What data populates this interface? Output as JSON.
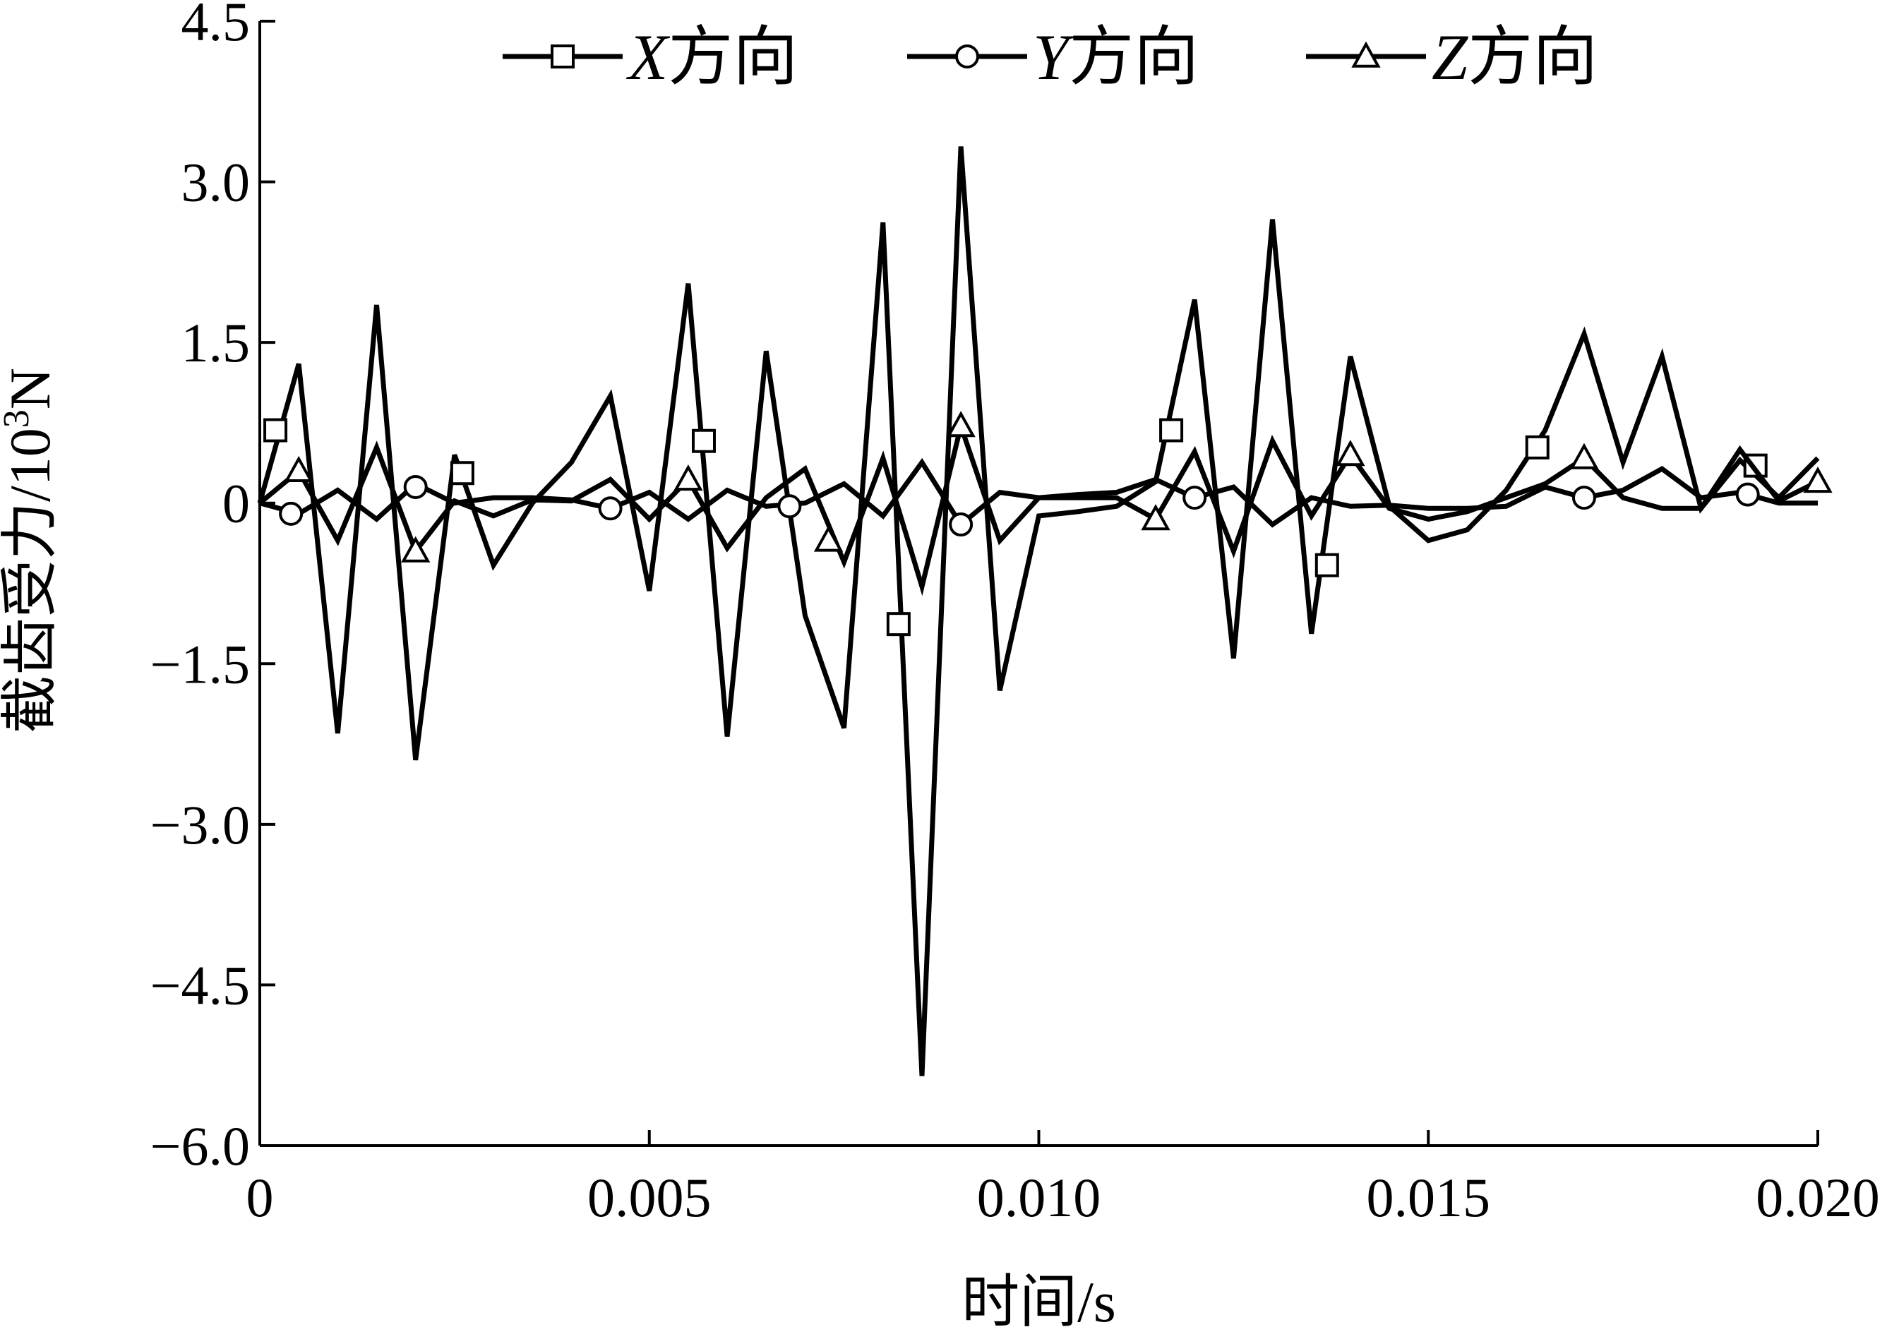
{
  "chart_data": {
    "type": "line",
    "xlabel": "时间/s",
    "ylabel": "截齿受力/10",
    "ylabel_sup": "3",
    "ylabel_unit": "N",
    "xlim": [
      0,
      0.02
    ],
    "ylim": [
      -6.0,
      4.5
    ],
    "x_ticks": [
      0,
      0.005,
      0.01,
      0.015,
      0.02
    ],
    "x_tick_labels": [
      "0",
      "0.005",
      "0.010",
      "0.015",
      "0.020"
    ],
    "y_ticks": [
      4.5,
      3.0,
      1.5,
      0,
      -1.5,
      -3.0,
      -4.5,
      -6.0
    ],
    "y_tick_labels": [
      "4.5",
      "3.0",
      "1.5",
      "0",
      "−1.5",
      "−3.0",
      "−4.5",
      "−6.0"
    ],
    "legend_position": "top",
    "grid": false,
    "series": [
      {
        "name": "X方向",
        "name_letter": "X",
        "name_suffix": "方向",
        "marker": "square",
        "x": [
          0,
          0.0005,
          0.001,
          0.0015,
          0.002,
          0.0025,
          0.003,
          0.0035,
          0.004,
          0.0045,
          0.005,
          0.0055,
          0.006,
          0.0065,
          0.007,
          0.0075,
          0.008,
          0.0085,
          0.009,
          0.0095,
          0.01,
          0.0105,
          0.011,
          0.0115,
          0.012,
          0.0125,
          0.013,
          0.0135,
          0.014,
          0.0145,
          0.015,
          0.0155,
          0.016,
          0.0165,
          0.017,
          0.0175,
          0.018,
          0.0185,
          0.019,
          0.0195,
          0.02
        ],
        "y": [
          0.0,
          1.3,
          -2.15,
          1.85,
          -2.4,
          0.45,
          -0.58,
          0.0,
          0.38,
          1.0,
          -0.82,
          2.05,
          -2.18,
          1.42,
          -1.05,
          -2.1,
          2.62,
          -5.35,
          3.33,
          -1.75,
          -0.12,
          -0.08,
          -0.03,
          0.2,
          1.9,
          -1.45,
          2.65,
          -1.22,
          1.37,
          -0.03,
          -0.35,
          -0.25,
          0.12,
          0.68,
          1.58,
          0.38,
          1.37,
          -0.05,
          0.4,
          0.05,
          0.42
        ],
        "marker_x": [
          0.0002,
          0.0026,
          0.0057,
          0.0082,
          0.0117,
          0.0137,
          0.0164,
          0.0192
        ],
        "marker_y": [
          0.68,
          0.28,
          0.58,
          -1.13,
          0.68,
          -0.58,
          0.52,
          0.35
        ]
      },
      {
        "name": "Y方向",
        "name_letter": "Y",
        "name_suffix": "方向",
        "marker": "circle",
        "x": [
          0,
          0.0005,
          0.001,
          0.0015,
          0.002,
          0.0025,
          0.003,
          0.0035,
          0.004,
          0.0045,
          0.005,
          0.0055,
          0.006,
          0.0065,
          0.007,
          0.0075,
          0.008,
          0.0085,
          0.009,
          0.0095,
          0.01,
          0.0105,
          0.011,
          0.0115,
          0.012,
          0.0125,
          0.013,
          0.0135,
          0.014,
          0.0145,
          0.015,
          0.0155,
          0.016,
          0.0165,
          0.017,
          0.0175,
          0.018,
          0.0185,
          0.019,
          0.0195,
          0.02
        ],
        "y": [
          0.0,
          -0.1,
          0.12,
          -0.15,
          0.18,
          0.0,
          0.05,
          0.05,
          0.03,
          -0.05,
          0.1,
          -0.15,
          0.12,
          -0.03,
          0.0,
          0.18,
          -0.12,
          0.38,
          -0.2,
          0.1,
          0.05,
          0.08,
          0.1,
          0.22,
          0.05,
          0.15,
          -0.2,
          0.05,
          -0.03,
          -0.02,
          -0.05,
          -0.05,
          -0.03,
          0.15,
          0.05,
          0.12,
          0.32,
          0.05,
          0.1,
          0.0,
          0.0
        ],
        "marker_x": [
          0.0004,
          0.002,
          0.0045,
          0.0068,
          0.009,
          0.012,
          0.017,
          0.0191
        ],
        "marker_y": [
          -0.1,
          0.15,
          -0.05,
          -0.03,
          -0.2,
          0.05,
          0.05,
          0.08
        ]
      },
      {
        "name": "Z方向",
        "name_letter": "Z",
        "name_suffix": "方向",
        "marker": "triangle",
        "x": [
          0,
          0.0005,
          0.001,
          0.0015,
          0.002,
          0.0025,
          0.003,
          0.0035,
          0.004,
          0.0045,
          0.005,
          0.0055,
          0.006,
          0.0065,
          0.007,
          0.0075,
          0.008,
          0.0085,
          0.009,
          0.0095,
          0.01,
          0.0105,
          0.011,
          0.0115,
          0.012,
          0.0125,
          0.013,
          0.0135,
          0.014,
          0.0145,
          0.015,
          0.0155,
          0.016,
          0.0165,
          0.017,
          0.0175,
          0.018,
          0.0185,
          0.019,
          0.0195,
          0.02
        ],
        "y": [
          0.0,
          0.3,
          -0.35,
          0.52,
          -0.45,
          0.02,
          -0.12,
          0.03,
          0.02,
          0.22,
          -0.15,
          0.22,
          -0.42,
          0.05,
          0.32,
          -0.55,
          0.42,
          -0.78,
          0.72,
          -0.35,
          0.05,
          0.05,
          0.05,
          -0.15,
          0.48,
          -0.45,
          0.58,
          -0.12,
          0.45,
          -0.05,
          -0.15,
          -0.08,
          0.05,
          0.18,
          0.42,
          0.05,
          -0.05,
          -0.05,
          0.5,
          0.02,
          0.2
        ],
        "marker_x": [
          0.0005,
          0.002,
          0.0055,
          0.0073,
          0.009,
          0.0115,
          0.014,
          0.017,
          0.02
        ],
        "marker_y": [
          0.3,
          -0.45,
          0.22,
          -0.35,
          0.72,
          -0.15,
          0.45,
          0.42,
          0.2
        ]
      }
    ]
  }
}
